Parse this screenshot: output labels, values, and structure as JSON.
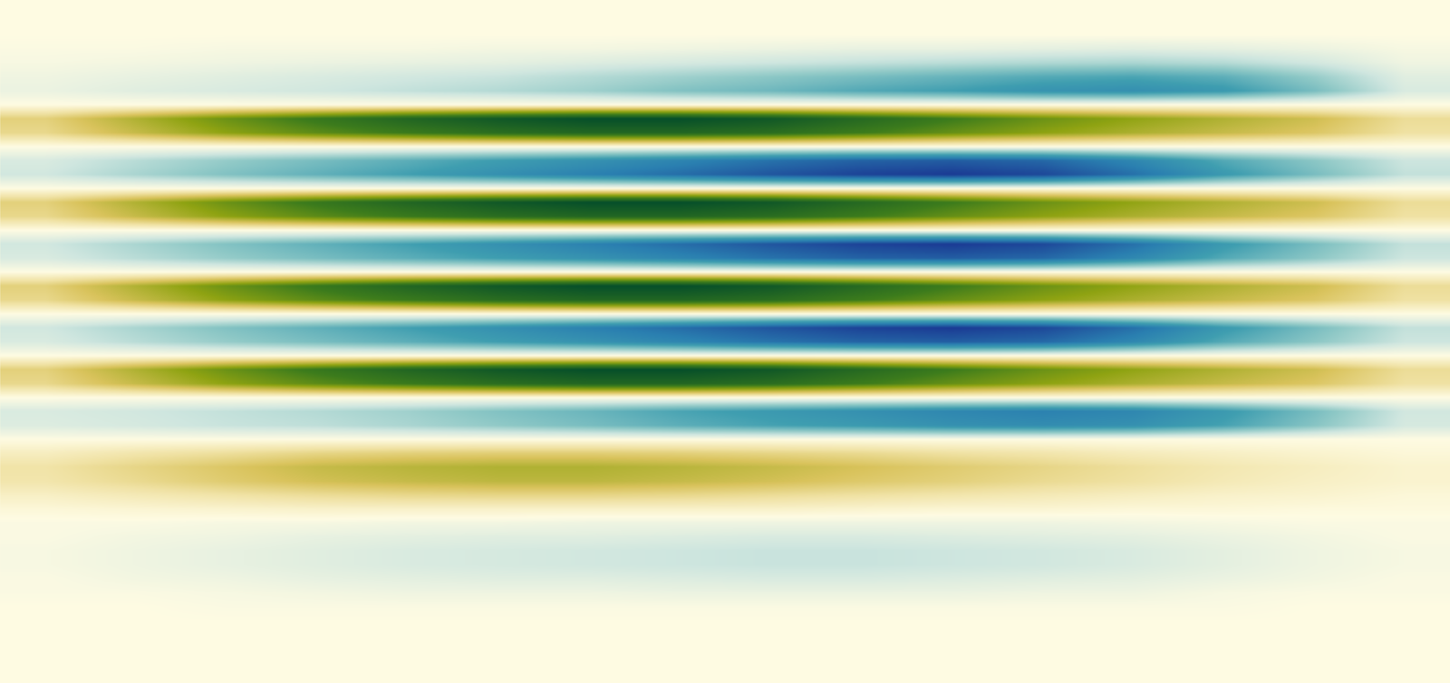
{
  "chart_data": {
    "type": "heatmap",
    "tick_labels": false,
    "values": [
      [
        0,
        0,
        0,
        0,
        0,
        0,
        0,
        0,
        0,
        0,
        0,
        0,
        0,
        0,
        0,
        0
      ],
      [
        0,
        0,
        0,
        0,
        0,
        0,
        0,
        0,
        0,
        0,
        0,
        0,
        0,
        0,
        0,
        0
      ],
      [
        0,
        0,
        0,
        0,
        0,
        0,
        0,
        0,
        0,
        0,
        0,
        0,
        0,
        0,
        0,
        0
      ],
      [
        -0.01,
        -0.01,
        -0.02,
        -0.02,
        -0.02,
        -0.03,
        -0.03,
        -0.04,
        -0.05,
        -0.06,
        -0.06,
        -0.07,
        -0.08,
        -0.07,
        -0.05,
        -0.02
      ],
      [
        -0.02,
        -0.03,
        -0.04,
        -0.05,
        -0.06,
        -0.07,
        -0.09,
        -0.11,
        -0.13,
        -0.15,
        -0.17,
        -0.19,
        -0.2,
        -0.18,
        -0.12,
        -0.04
      ],
      [
        -0.04,
        -0.06,
        -0.08,
        -0.1,
        -0.12,
        -0.14,
        -0.18,
        -0.22,
        -0.26,
        -0.3,
        -0.34,
        -0.38,
        -0.4,
        -0.36,
        -0.24,
        -0.08
      ],
      [
        -0.05,
        -0.08,
        -0.1,
        -0.12,
        -0.15,
        -0.18,
        -0.22,
        -0.28,
        -0.32,
        -0.38,
        -0.42,
        -0.48,
        -0.5,
        -0.45,
        -0.3,
        -0.1
      ],
      [
        0,
        0,
        0,
        0,
        0,
        0,
        0,
        0,
        0,
        0,
        0,
        0,
        0,
        0,
        0,
        0
      ],
      [
        0.2,
        0.35,
        0.5,
        0.62,
        0.72,
        0.8,
        0.85,
        0.85,
        0.8,
        0.7,
        0.6,
        0.5,
        0.42,
        0.35,
        0.28,
        0.15
      ],
      [
        0.17,
        0.3,
        0.43,
        0.53,
        0.61,
        0.68,
        0.72,
        0.72,
        0.68,
        0.6,
        0.51,
        0.43,
        0.36,
        0.3,
        0.24,
        0.13
      ],
      [
        0,
        0,
        0,
        0,
        0,
        0,
        0,
        0,
        0,
        0,
        0,
        0,
        0,
        0,
        0,
        0
      ],
      [
        -0.1,
        -0.17,
        -0.24,
        -0.3,
        -0.36,
        -0.43,
        -0.49,
        -0.56,
        -0.64,
        -0.7,
        -0.72,
        -0.68,
        -0.55,
        -0.38,
        -0.26,
        -0.13
      ],
      [
        -0.12,
        -0.2,
        -0.28,
        -0.35,
        -0.42,
        -0.5,
        -0.58,
        -0.66,
        -0.75,
        -0.82,
        -0.85,
        -0.8,
        -0.65,
        -0.45,
        -0.3,
        -0.15
      ],
      [
        0,
        0,
        0,
        0,
        0,
        0,
        0,
        0,
        0,
        0,
        0,
        0,
        0,
        0,
        0,
        0
      ],
      [
        0.2,
        0.35,
        0.5,
        0.62,
        0.72,
        0.8,
        0.85,
        0.85,
        0.8,
        0.7,
        0.6,
        0.5,
        0.42,
        0.35,
        0.28,
        0.15
      ],
      [
        0.17,
        0.3,
        0.43,
        0.53,
        0.61,
        0.68,
        0.72,
        0.72,
        0.68,
        0.6,
        0.51,
        0.43,
        0.36,
        0.3,
        0.24,
        0.13
      ],
      [
        0,
        0,
        0,
        0,
        0,
        0,
        0,
        0,
        0,
        0,
        0,
        0,
        0,
        0,
        0,
        0
      ],
      [
        -0.12,
        -0.2,
        -0.28,
        -0.35,
        -0.42,
        -0.5,
        -0.58,
        -0.66,
        -0.75,
        -0.82,
        -0.85,
        -0.8,
        -0.65,
        -0.45,
        -0.3,
        -0.15
      ],
      [
        -0.1,
        -0.17,
        -0.24,
        -0.3,
        -0.36,
        -0.43,
        -0.49,
        -0.56,
        -0.64,
        -0.7,
        -0.72,
        -0.68,
        -0.55,
        -0.38,
        -0.26,
        -0.13
      ],
      [
        0,
        0,
        0,
        0,
        0,
        0,
        0,
        0,
        0,
        0,
        0,
        0,
        0,
        0,
        0,
        0
      ],
      [
        0.2,
        0.35,
        0.5,
        0.62,
        0.72,
        0.8,
        0.85,
        0.85,
        0.8,
        0.7,
        0.6,
        0.5,
        0.42,
        0.35,
        0.28,
        0.15
      ],
      [
        0.17,
        0.3,
        0.43,
        0.53,
        0.61,
        0.68,
        0.72,
        0.72,
        0.68,
        0.6,
        0.51,
        0.43,
        0.36,
        0.3,
        0.24,
        0.13
      ],
      [
        0,
        0,
        0,
        0,
        0,
        0,
        0,
        0,
        0,
        0,
        0,
        0,
        0,
        0,
        0,
        0
      ],
      [
        -0.12,
        -0.2,
        -0.28,
        -0.35,
        -0.42,
        -0.5,
        -0.58,
        -0.66,
        -0.75,
        -0.82,
        -0.85,
        -0.8,
        -0.65,
        -0.45,
        -0.3,
        -0.15
      ],
      [
        -0.1,
        -0.17,
        -0.24,
        -0.3,
        -0.36,
        -0.43,
        -0.49,
        -0.56,
        -0.64,
        -0.7,
        -0.72,
        -0.68,
        -0.55,
        -0.38,
        -0.26,
        -0.13
      ],
      [
        0,
        0,
        0,
        0,
        0,
        0,
        0,
        0,
        0,
        0,
        0,
        0,
        0,
        0,
        0,
        0
      ],
      [
        0.2,
        0.35,
        0.5,
        0.62,
        0.72,
        0.8,
        0.85,
        0.85,
        0.8,
        0.7,
        0.6,
        0.5,
        0.42,
        0.35,
        0.28,
        0.15
      ],
      [
        0.17,
        0.3,
        0.43,
        0.53,
        0.61,
        0.68,
        0.72,
        0.72,
        0.68,
        0.6,
        0.51,
        0.43,
        0.36,
        0.3,
        0.24,
        0.13
      ],
      [
        0,
        0,
        0,
        0,
        0,
        0,
        0,
        0,
        0,
        0,
        0,
        0,
        0,
        0,
        0,
        0
      ],
      [
        -0.1,
        -0.12,
        -0.15,
        -0.18,
        -0.22,
        -0.28,
        -0.33,
        -0.4,
        -0.45,
        -0.5,
        -0.55,
        -0.58,
        -0.55,
        -0.45,
        -0.3,
        -0.12
      ],
      [
        -0.09,
        -0.11,
        -0.14,
        -0.16,
        -0.2,
        -0.25,
        -0.3,
        -0.36,
        -0.41,
        -0.45,
        -0.5,
        -0.52,
        -0.5,
        -0.41,
        -0.27,
        -0.11
      ],
      [
        0,
        0,
        0,
        0,
        0,
        0,
        0,
        0,
        0,
        0,
        0,
        0,
        0,
        0,
        0,
        0
      ],
      [
        0.07,
        0.11,
        0.14,
        0.18,
        0.2,
        0.21,
        0.21,
        0.2,
        0.18,
        0.16,
        0.13,
        0.11,
        0.08,
        0.06,
        0.04,
        0.02
      ],
      [
        0.12,
        0.18,
        0.24,
        0.3,
        0.33,
        0.35,
        0.35,
        0.33,
        0.3,
        0.26,
        0.22,
        0.18,
        0.14,
        0.1,
        0.07,
        0.04
      ],
      [
        0.11,
        0.16,
        0.22,
        0.27,
        0.3,
        0.32,
        0.32,
        0.3,
        0.27,
        0.23,
        0.2,
        0.16,
        0.13,
        0.09,
        0.06,
        0.04
      ],
      [
        0.06,
        0.09,
        0.12,
        0.15,
        0.17,
        0.18,
        0.18,
        0.17,
        0.15,
        0.13,
        0.11,
        0.09,
        0.07,
        0.05,
        0.04,
        0.02
      ],
      [
        0.02,
        0.03,
        0.04,
        0.05,
        0.05,
        0.05,
        0.05,
        0.05,
        0.05,
        0.04,
        0.03,
        0.03,
        0.02,
        0.02,
        0.01,
        0.01
      ],
      [
        -0.01,
        -0.01,
        -0.02,
        -0.02,
        -0.03,
        -0.03,
        -0.04,
        -0.04,
        -0.04,
        -0.04,
        -0.04,
        -0.04,
        -0.03,
        -0.02,
        -0.01,
        -0.01
      ],
      [
        -0.01,
        -0.03,
        -0.04,
        -0.06,
        -0.07,
        -0.08,
        -0.08,
        -0.09,
        -0.1,
        -0.1,
        -0.09,
        -0.08,
        -0.07,
        -0.05,
        -0.03,
        -0.01
      ],
      [
        -0.02,
        -0.04,
        -0.06,
        -0.08,
        -0.1,
        -0.11,
        -0.12,
        -0.13,
        -0.14,
        -0.14,
        -0.13,
        -0.12,
        -0.1,
        -0.07,
        -0.04,
        -0.02
      ],
      [
        -0.02,
        -0.04,
        -0.06,
        -0.08,
        -0.1,
        -0.11,
        -0.12,
        -0.13,
        -0.14,
        -0.14,
        -0.13,
        -0.12,
        -0.1,
        -0.07,
        -0.04,
        -0.02
      ],
      [
        -0.01,
        -0.03,
        -0.04,
        -0.06,
        -0.07,
        -0.08,
        -0.08,
        -0.09,
        -0.1,
        -0.1,
        -0.09,
        -0.08,
        -0.07,
        -0.05,
        -0.03,
        -0.01
      ],
      [
        -0.01,
        -0.01,
        -0.02,
        -0.03,
        -0.04,
        -0.04,
        -0.04,
        -0.05,
        -0.05,
        -0.05,
        -0.05,
        -0.04,
        -0.04,
        -0.02,
        -0.01,
        -0.01
      ],
      [
        0,
        0,
        -0.01,
        -0.01,
        -0.01,
        -0.01,
        -0.01,
        -0.01,
        -0.01,
        -0.01,
        -0.01,
        -0.01,
        -0.01,
        -0.01,
        0,
        0
      ],
      [
        0,
        0,
        0,
        0,
        0,
        0,
        0,
        0,
        0,
        0,
        0,
        0,
        0,
        0,
        0,
        0
      ],
      [
        0,
        0,
        0,
        0,
        0,
        0,
        0,
        0,
        0,
        0,
        0,
        0,
        0,
        0,
        0,
        0
      ],
      [
        0,
        0,
        0,
        0,
        0,
        0,
        0,
        0,
        0,
        0,
        0,
        0,
        0,
        0,
        0,
        0
      ],
      [
        0,
        0,
        0,
        0,
        0,
        0,
        0,
        0,
        0,
        0,
        0,
        0,
        0,
        0,
        0,
        0
      ],
      [
        0,
        0,
        0,
        0,
        0,
        0,
        0,
        0,
        0,
        0,
        0,
        0,
        0,
        0,
        0,
        0
      ]
    ]
  }
}
